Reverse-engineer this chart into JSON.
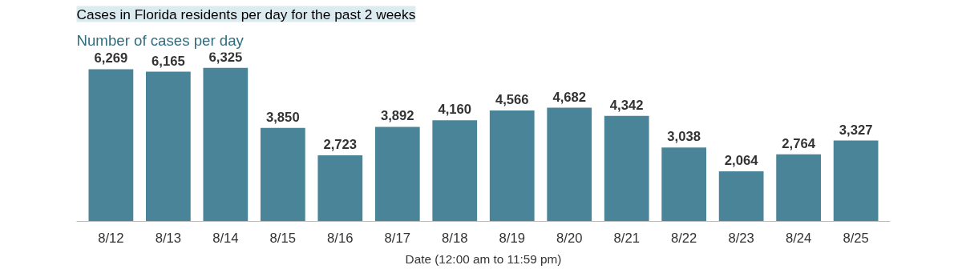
{
  "chart_data": {
    "type": "bar",
    "title": "Cases in Florida residents per day for the past 2 weeks",
    "subtitle": "Number of cases per day",
    "xlabel": "Date (12:00 am to 11:59 pm)",
    "categories": [
      "8/12",
      "8/13",
      "8/14",
      "8/15",
      "8/16",
      "8/17",
      "8/18",
      "8/19",
      "8/20",
      "8/21",
      "8/22",
      "8/23",
      "8/24",
      "8/25"
    ],
    "values": [
      6269,
      6165,
      6325,
      3850,
      2723,
      3892,
      4160,
      4566,
      4682,
      4342,
      3038,
      2064,
      2764,
      3327
    ],
    "value_labels": [
      "6,269",
      "6,165",
      "6,325",
      "3,850",
      "2,723",
      "3,892",
      "4,160",
      "4,566",
      "4,682",
      "4,342",
      "3,038",
      "2,064",
      "2,764",
      "3,327"
    ],
    "color": "#4a8499",
    "grid": false
  }
}
